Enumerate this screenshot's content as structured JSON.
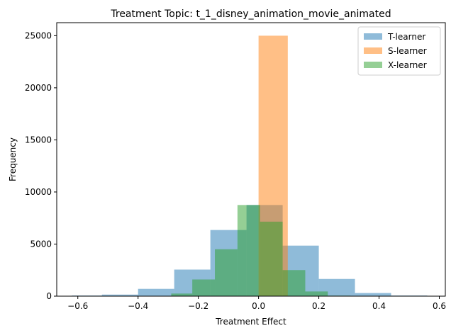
{
  "chart_data": {
    "type": "histogram",
    "title": "Treatment Topic: t_1_disney_animation_movie_animated",
    "xlabel": "Treatment Effect",
    "ylabel": "Frequency",
    "xlim": [
      -0.67,
      0.62
    ],
    "ylim": [
      0,
      26250
    ],
    "xticks": [
      -0.6,
      -0.4,
      -0.2,
      0.0,
      0.2,
      0.4,
      0.6
    ],
    "xtick_labels": [
      "−0.6",
      "−0.4",
      "−0.2",
      "0.0",
      "0.2",
      "0.4",
      "0.6"
    ],
    "yticks": [
      0,
      5000,
      10000,
      15000,
      20000,
      25000
    ],
    "ytick_labels": [
      "0",
      "5000",
      "10000",
      "15000",
      "20000",
      "25000"
    ],
    "legend_position": "top-right",
    "series": [
      {
        "name": "T-learner",
        "color": "#1f77b4",
        "opacity": 0.5,
        "bins": [
          {
            "x0": -0.62,
            "x1": -0.52,
            "count": 60
          },
          {
            "x0": -0.52,
            "x1": -0.4,
            "count": 150
          },
          {
            "x0": -0.4,
            "x1": -0.28,
            "count": 700
          },
          {
            "x0": -0.28,
            "x1": -0.16,
            "count": 2550
          },
          {
            "x0": -0.16,
            "x1": -0.04,
            "count": 6350
          },
          {
            "x0": -0.04,
            "x1": 0.08,
            "count": 8750
          },
          {
            "x0": 0.08,
            "x1": 0.2,
            "count": 4850
          },
          {
            "x0": 0.2,
            "x1": 0.32,
            "count": 1650
          },
          {
            "x0": 0.32,
            "x1": 0.44,
            "count": 300
          },
          {
            "x0": 0.44,
            "x1": 0.56,
            "count": 60
          }
        ]
      },
      {
        "name": "S-learner",
        "color": "#ff7f0e",
        "opacity": 0.5,
        "bins": [
          {
            "x0": 0.0,
            "x1": 0.097,
            "count": 25000
          }
        ]
      },
      {
        "name": "X-learner",
        "color": "#2ca02c",
        "opacity": 0.5,
        "bins": [
          {
            "x0": -0.29,
            "x1": -0.22,
            "count": 250
          },
          {
            "x0": -0.22,
            "x1": -0.145,
            "count": 1600
          },
          {
            "x0": -0.145,
            "x1": -0.07,
            "count": 4500
          },
          {
            "x0": -0.07,
            "x1": 0.005,
            "count": 8750
          },
          {
            "x0": 0.005,
            "x1": 0.08,
            "count": 7150
          },
          {
            "x0": 0.08,
            "x1": 0.155,
            "count": 2500
          },
          {
            "x0": 0.155,
            "x1": 0.23,
            "count": 450
          },
          {
            "x0": 0.23,
            "x1": 0.305,
            "count": 50
          }
        ]
      }
    ]
  }
}
